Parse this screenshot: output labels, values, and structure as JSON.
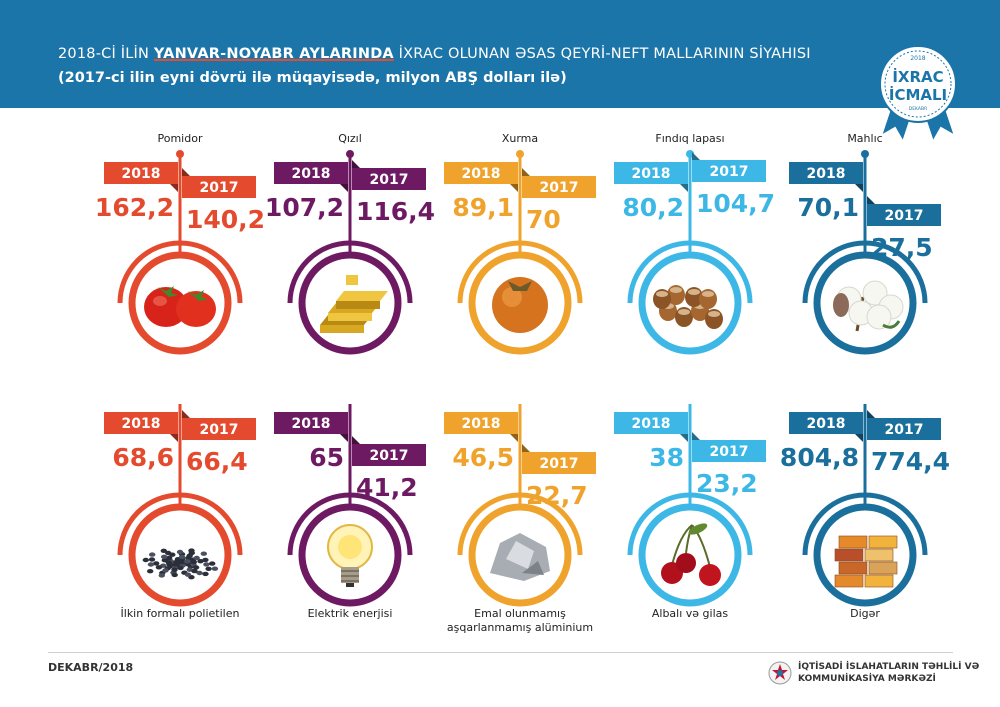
{
  "header": {
    "title_pre": "2018-Cİ İLİN ",
    "title_bold": "YANVAR-NOYABR AYLARINDA",
    "title_post": " İXRAC OLUNAN ƏSAS QEYRİ-NEFT MALLARININ SİYAHISI",
    "subtitle": "(2017-ci ilin eyni dövrü ilə müqayisədə, milyon ABŞ dolları ilə)"
  },
  "badge": {
    "year": "2018",
    "line1": "İXRAC",
    "line2": "İCMALI",
    "month": "DEKABR"
  },
  "footer": {
    "period": "DEKABR/2018",
    "org_line1": "İQTİSADİ İSLAHATLARIN TƏHLİLİ VƏ",
    "org_line2": "KOMMUNİKASİYA MƏRKƏZİ"
  },
  "colors": {
    "header": "#1b75a8",
    "red": "#e44a2d",
    "purple": "#6d1a63",
    "orange": "#f0a32c",
    "lightblue": "#3db8e6",
    "darkblue": "#1b6f9c"
  },
  "chart_data": {
    "type": "bar",
    "series": [
      {
        "name": "2018",
        "values": [
          162.2,
          107.2,
          89.1,
          80.2,
          70.1,
          68.6,
          65,
          46.5,
          38,
          804.8
        ]
      },
      {
        "name": "2017",
        "values": [
          140.2,
          116.4,
          70,
          104.7,
          27.5,
          66.4,
          41.2,
          22.7,
          23.2,
          774.4
        ]
      }
    ],
    "categories": [
      "Pomidor",
      "Qızıl",
      "Xurma",
      "Fındıq lapası",
      "Mahlıc",
      "İlkin formalı polietilen",
      "Elektrik enerjisi",
      "Emal olunmamış aşqarlanmamış alüminium",
      "Albalı və gilas",
      "Digər"
    ],
    "items": [
      {
        "name": "Pomidor",
        "color": "#e44a2d",
        "icon": "tomato-icon",
        "v2018": "162,2",
        "v2017": "140,2"
      },
      {
        "name": "Qızıl",
        "color": "#6d1a63",
        "icon": "gold-bars-icon",
        "v2018": "107,2",
        "v2017": "116,4"
      },
      {
        "name": "Xurma",
        "color": "#f0a32c",
        "icon": "persimmon-icon",
        "v2018": "89,1",
        "v2017": "70"
      },
      {
        "name": "Fındıq lapası",
        "color": "#3db8e6",
        "icon": "hazelnut-icon",
        "v2018": "80,2",
        "v2017": "104,7"
      },
      {
        "name": "Mahlıc",
        "color": "#1b6f9c",
        "icon": "cotton-icon",
        "v2018": "70,1",
        "v2017": "27,5"
      },
      {
        "name": "İlkin formalı polietilen",
        "color": "#e44a2d",
        "icon": "polyethylene-granules-icon",
        "v2018": "68,6",
        "v2017": "66,4"
      },
      {
        "name": "Elektrik enerjisi",
        "color": "#6d1a63",
        "icon": "light-bulb-icon",
        "v2018": "65",
        "v2017": "41,2"
      },
      {
        "name": "Emal olunmamış\naşqarlanmamış alüminium",
        "color": "#f0a32c",
        "icon": "aluminium-scrap-icon",
        "v2018": "46,5",
        "v2017": "22,7"
      },
      {
        "name": "Albalı və gilas",
        "color": "#3db8e6",
        "icon": "cherry-icon",
        "v2018": "38",
        "v2017": "23,2"
      },
      {
        "name": "Digər",
        "color": "#1b6f9c",
        "icon": "containers-icon",
        "v2018": "804,8",
        "v2017": "774,4"
      }
    ]
  }
}
